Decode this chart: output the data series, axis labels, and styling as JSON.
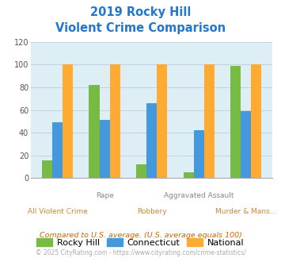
{
  "title_line1": "2019 Rocky Hill",
  "title_line2": "Violent Crime Comparison",
  "rocky_hill": [
    16,
    82,
    12,
    5,
    99
  ],
  "connecticut": [
    49,
    51,
    66,
    42,
    59
  ],
  "national": [
    100,
    100,
    100,
    100,
    100
  ],
  "colors": {
    "rocky_hill": "#77bb44",
    "connecticut": "#4499dd",
    "national": "#ffaa33"
  },
  "ylim": [
    0,
    120
  ],
  "yticks": [
    0,
    20,
    40,
    60,
    80,
    100,
    120
  ],
  "title_color": "#2277cc",
  "axis_bg": "#ddeef5",
  "fig_bg": "#ffffff",
  "legend_labels": [
    "Rocky Hill",
    "Connecticut",
    "National"
  ],
  "top_labels": {
    "1": "Rape",
    "3": "Aggravated Assault"
  },
  "bottom_labels": {
    "0": "All Violent Crime",
    "2": "Robbery",
    "4": "Murder & Mans..."
  },
  "top_label_color": "#888888",
  "bottom_label_color": "#cc8833",
  "footnote1": "Compared to U.S. average. (U.S. average equals 100)",
  "footnote2": "© 2025 CityRating.com - https://www.cityrating.com/crime-statistics/",
  "footnote1_color": "#cc6600",
  "footnote2_color": "#aaaaaa"
}
